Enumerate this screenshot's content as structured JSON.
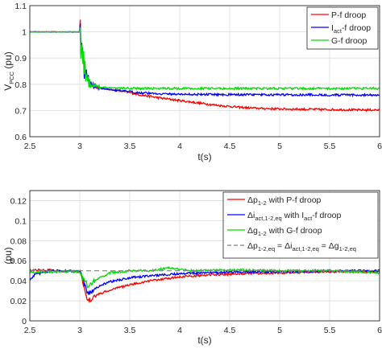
{
  "chart_data": [
    {
      "type": "line",
      "xlabel": "t(s)",
      "ylabel": "V",
      "ylabel_sub": "PCC",
      "ylabel_unit": " (pu)",
      "xlim": [
        2.5,
        6
      ],
      "ylim": [
        0.6,
        1.1
      ],
      "xticks": [
        "2.5",
        "3",
        "3.5",
        "4",
        "4.5",
        "5",
        "5.5",
        "6"
      ],
      "yticks": [
        "0.6",
        "0.7",
        "0.8",
        "0.9",
        "1",
        "1.1"
      ],
      "grid": true,
      "legend_position": "top-right",
      "series": [
        {
          "name": "P-f droop",
          "color": "#ff0000",
          "x": [
            2.5,
            3.0,
            3.05,
            3.1,
            3.2,
            3.3,
            3.4,
            3.5,
            3.6,
            3.8,
            4.0,
            4.2,
            4.4,
            4.6,
            4.8,
            5.0,
            5.2,
            5.4,
            5.6,
            5.8,
            6.0
          ],
          "y": [
            1.0,
            1.0,
            0.85,
            0.8,
            0.785,
            0.78,
            0.775,
            0.768,
            0.76,
            0.748,
            0.738,
            0.728,
            0.719,
            0.712,
            0.708,
            0.706,
            0.705,
            0.704,
            0.703,
            0.702,
            0.702
          ]
        },
        {
          "name": "I_act-f droop",
          "label_main": "I",
          "label_sub": "act",
          "label_rest": "-f droop",
          "color": "#0000ff",
          "x": [
            2.5,
            3.0,
            3.05,
            3.1,
            3.2,
            3.4,
            3.6,
            3.8,
            4.0,
            4.4,
            4.8,
            5.2,
            5.6,
            6.0
          ],
          "y": [
            1.0,
            1.0,
            0.85,
            0.8,
            0.785,
            0.775,
            0.768,
            0.764,
            0.762,
            0.761,
            0.76,
            0.76,
            0.759,
            0.759
          ]
        },
        {
          "name": "G-f droop",
          "color": "#00dd00",
          "x": [
            2.5,
            3.0,
            3.05,
            3.1,
            3.2,
            3.4,
            3.6,
            4.0,
            4.5,
            5.0,
            5.5,
            6.0
          ],
          "y": [
            1.0,
            1.0,
            0.85,
            0.8,
            0.788,
            0.785,
            0.784,
            0.784,
            0.784,
            0.784,
            0.784,
            0.784
          ]
        }
      ]
    },
    {
      "type": "line",
      "xlabel": "t(s)",
      "ylabel": "(pu)",
      "xlim": [
        2.5,
        6
      ],
      "ylim": [
        0,
        0.13
      ],
      "xticks": [
        "2.5",
        "3",
        "3.5",
        "4",
        "4.5",
        "5",
        "5.5",
        "6"
      ],
      "yticks": [
        "0",
        "0.02",
        "0.04",
        "0.06",
        "0.08",
        "0.1",
        "0.12"
      ],
      "grid": true,
      "legend_position": "top-right",
      "series": [
        {
          "name": "Δp1-2 with P-f droop",
          "label_parts": [
            [
              "Δp",
              ""
            ],
            [
              "1-2",
              "sub"
            ],
            [
              " with P-f droop",
              ""
            ]
          ],
          "color": "#ff0000",
          "x": [
            2.5,
            2.6,
            2.8,
            3.0,
            3.03,
            3.06,
            3.08,
            3.1,
            3.15,
            3.2,
            3.3,
            3.5,
            3.7,
            4.0,
            4.3,
            4.6,
            5.0,
            5.5,
            6.0
          ],
          "y": [
            0.05,
            0.051,
            0.05,
            0.049,
            0.04,
            0.027,
            0.02,
            0.021,
            0.024,
            0.027,
            0.031,
            0.036,
            0.04,
            0.044,
            0.046,
            0.047,
            0.048,
            0.049,
            0.049
          ]
        },
        {
          "name": "Δi act,1-2,eq with I act-f droop",
          "label_parts": [
            [
              "Δi",
              ""
            ],
            [
              "act,1-2,eq",
              "sub"
            ],
            [
              " with I",
              ""
            ],
            [
              "act",
              "sub"
            ],
            [
              "-f droop",
              ""
            ]
          ],
          "color": "#0000ff",
          "x": [
            2.5,
            2.55,
            2.7,
            2.9,
            3.0,
            3.03,
            3.06,
            3.08,
            3.1,
            3.15,
            3.2,
            3.3,
            3.5,
            3.7,
            4.0,
            4.3,
            4.6,
            5.0,
            5.5,
            6.0
          ],
          "y": [
            0.041,
            0.046,
            0.05,
            0.05,
            0.049,
            0.042,
            0.032,
            0.027,
            0.028,
            0.032,
            0.035,
            0.039,
            0.043,
            0.045,
            0.047,
            0.048,
            0.049,
            0.049,
            0.05,
            0.05
          ]
        },
        {
          "name": "Δg1-2 with G-f droop",
          "label_parts": [
            [
              "Δg",
              ""
            ],
            [
              "1-2",
              "sub"
            ],
            [
              " with G-f droop",
              ""
            ]
          ],
          "color": "#00dd00",
          "x": [
            2.5,
            2.6,
            2.8,
            3.0,
            3.04,
            3.08,
            3.12,
            3.2,
            3.3,
            3.5,
            3.7,
            3.9,
            4.1,
            4.5,
            5.0,
            5.5,
            6.0
          ],
          "y": [
            0.048,
            0.049,
            0.049,
            0.049,
            0.042,
            0.035,
            0.038,
            0.043,
            0.048,
            0.05,
            0.05,
            0.053,
            0.05,
            0.051,
            0.05,
            0.05,
            0.048
          ]
        },
        {
          "name": "Δp1-2,eq = Δi act,1-2,eq = Δg1-2,eq",
          "label_parts": [
            [
              "Δp",
              ""
            ],
            [
              "1-2,eq",
              "sub"
            ],
            [
              " = Δi",
              ""
            ],
            [
              "act,1-2,eq",
              "sub"
            ],
            [
              " = Δg",
              ""
            ],
            [
              "1-2,eq",
              "sub"
            ]
          ],
          "color": "#808080",
          "dashed": true,
          "x": [
            2.5,
            6.0
          ],
          "y": [
            0.05,
            0.05
          ]
        }
      ]
    }
  ]
}
